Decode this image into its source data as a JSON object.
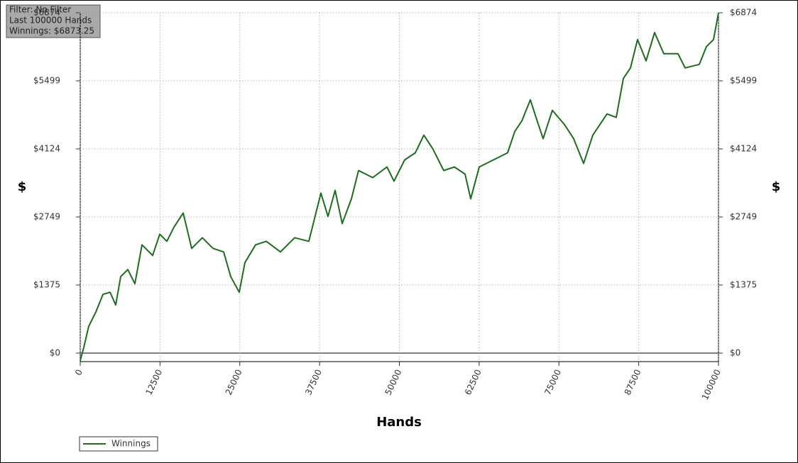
{
  "info": {
    "filter": "Filter: No Filter",
    "hands": "Last 100000 Hands",
    "winnings": "Winnings: $6873.25"
  },
  "chart_data": {
    "type": "line",
    "xlabel": "Hands",
    "ylabel": "$",
    "xlim": [
      0,
      100000
    ],
    "xticks": [
      0,
      12500,
      25000,
      37500,
      50000,
      62500,
      75000,
      87500,
      100000
    ],
    "ylim": [
      -172,
      6874
    ],
    "yticks": [
      {
        "value": 0,
        "label": "$0"
      },
      {
        "value": 1375,
        "label": "$1375"
      },
      {
        "value": 2749,
        "label": "$2749"
      },
      {
        "value": 4124,
        "label": "$4124"
      },
      {
        "value": 5499,
        "label": "$5499"
      },
      {
        "value": 6874,
        "label": "$6874"
      }
    ],
    "grid": true,
    "series": [
      {
        "name": "Winnings",
        "color": "#1f6b1f",
        "x": [
          0,
          556,
          1335,
          2447,
          3560,
          4672,
          5562,
          6340,
          7453,
          8565,
          9678,
          11346,
          12458,
          13571,
          14683,
          16129,
          17464,
          19132,
          20801,
          22469,
          23582,
          24917,
          25806,
          27475,
          29143,
          31368,
          33593,
          35818,
          37709,
          38821,
          39933,
          41046,
          42492,
          43604,
          45829,
          48053,
          49166,
          50834,
          52503,
          53838,
          55284,
          56952,
          58621,
          60289,
          61179,
          62514,
          64739,
          66963,
          68076,
          69188,
          70523,
          71412,
          72525,
          73971,
          75862,
          77308,
          78865,
          80311,
          82536,
          83982,
          85094,
          86207,
          87319,
          88654,
          89989,
          91435,
          93660,
          94772,
          96997,
          98109,
          99221,
          100000
        ],
        "values": [
          -150,
          114,
          543,
          829,
          1186,
          1229,
          972,
          1544,
          1687,
          1401,
          2187,
          1972,
          2401,
          2258,
          2544,
          2830,
          2115,
          2330,
          2115,
          2044,
          1544,
          1229,
          1829,
          2187,
          2258,
          2044,
          2330,
          2258,
          3230,
          2759,
          3287,
          2616,
          3116,
          3688,
          3545,
          3759,
          3473,
          3902,
          4045,
          4402,
          4116,
          3688,
          3759,
          3616,
          3116,
          3759,
          3902,
          4045,
          4474,
          4688,
          5117,
          4760,
          4331,
          4903,
          4617,
          4331,
          3831,
          4402,
          4831,
          4760,
          5546,
          5760,
          6332,
          5903,
          6475,
          6046,
          6046,
          5760,
          5832,
          6189,
          6332,
          6873
        ]
      }
    ]
  }
}
